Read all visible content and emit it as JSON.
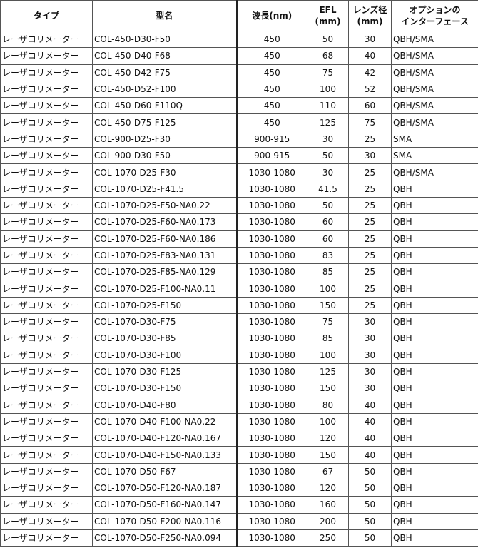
{
  "headers": [
    "タイプ",
    "型名",
    "波長(nm)",
    "EFL\n(mm)",
    "レンズ径\n(mm)",
    "オプションの\nインターフェース"
  ],
  "rows": [
    [
      "レーザコリメーター",
      "COL-450-D30-F50",
      "450",
      "50",
      "30",
      "QBH/SMA"
    ],
    [
      "レーザコリメーター",
      "COL-450-D40-F68",
      "450",
      "68",
      "40",
      "QBH/SMA"
    ],
    [
      "レーザコリメーター",
      "COL-450-D42-F75",
      "450",
      "75",
      "42",
      "QBH/SMA"
    ],
    [
      "レーザコリメーター",
      "COL-450-D52-F100",
      "450",
      "100",
      "52",
      "QBH/SMA"
    ],
    [
      "レーザコリメーター",
      "COL-450-D60-F110Q",
      "450",
      "110",
      "60",
      "QBH/SMA"
    ],
    [
      "レーザコリメーター",
      "COL-450-D75-F125",
      "450",
      "125",
      "75",
      "QBH/SMA"
    ],
    [
      "レーザコリメーター",
      "COL-900-D25-F30",
      "900-915",
      "30",
      "25",
      "SMA"
    ],
    [
      "レーザコリメーター",
      "COL-900-D30-F50",
      "900-915",
      "50",
      "30",
      "SMA"
    ],
    [
      "レーザコリメーター",
      "COL-1070-D25-F30",
      "1030-1080",
      "30",
      "25",
      "QBH/SMA"
    ],
    [
      "レーザコリメーター",
      "COL-1070-D25-F41.5",
      "1030-1080",
      "41.5",
      "25",
      "QBH"
    ],
    [
      "レーザコリメーター",
      "COL-1070-D25-F50-NA0.22",
      "1030-1080",
      "50",
      "25",
      "QBH"
    ],
    [
      "レーザコリメーター",
      "COL-1070-D25-F60-NA0.173",
      "1030-1080",
      "60",
      "25",
      "QBH"
    ],
    [
      "レーザコリメーター",
      "COL-1070-D25-F60-NA0.186",
      "1030-1080",
      "60",
      "25",
      "QBH"
    ],
    [
      "レーザコリメーター",
      "COL-1070-D25-F83-NA0.131",
      "1030-1080",
      "83",
      "25",
      "QBH"
    ],
    [
      "レーザコリメーター",
      "COL-1070-D25-F85-NA0.129",
      "1030-1080",
      "85",
      "25",
      "QBH"
    ],
    [
      "レーザコリメーター",
      "COL-1070-D25-F100-NA0.11",
      "1030-1080",
      "100",
      "25",
      "QBH"
    ],
    [
      "レーザコリメーター",
      "COL-1070-D25-F150",
      "1030-1080",
      "150",
      "25",
      "QBH"
    ],
    [
      "レーザコリメーター",
      "COL-1070-D30-F75",
      "1030-1080",
      "75",
      "30",
      "QBH"
    ],
    [
      "レーザコリメーター",
      "COL-1070-D30-F85",
      "1030-1080",
      "85",
      "30",
      "QBH"
    ],
    [
      "レーザコリメーター",
      "COL-1070-D30-F100",
      "1030-1080",
      "100",
      "30",
      "QBH"
    ],
    [
      "レーザコリメーター",
      "COL-1070-D30-F125",
      "1030-1080",
      "125",
      "30",
      "QBH"
    ],
    [
      "レーザコリメーター",
      "COL-1070-D30-F150",
      "1030-1080",
      "150",
      "30",
      "QBH"
    ],
    [
      "レーザコリメーター",
      "COL-1070-D40-F80",
      "1030-1080",
      "80",
      "40",
      "QBH"
    ],
    [
      "レーザコリメーター",
      "COL-1070-D40-F100-NA0.22",
      "1030-1080",
      "100",
      "40",
      "QBH"
    ],
    [
      "レーザコリメーター",
      "COL-1070-D40-F120-NA0.167",
      "1030-1080",
      "120",
      "40",
      "QBH"
    ],
    [
      "レーザコリメーター",
      "COL-1070-D40-F150-NA0.133",
      "1030-1080",
      "150",
      "40",
      "QBH"
    ],
    [
      "レーザコリメーター",
      "COL-1070-D50-F67",
      "1030-1080",
      "67",
      "50",
      "QBH"
    ],
    [
      "レーザコリメーター",
      "COL-1070-D50-F120-NA0.187",
      "1030-1080",
      "120",
      "50",
      "QBH"
    ],
    [
      "レーザコリメーター",
      "COL-1070-D50-F160-NA0.147",
      "1030-1080",
      "160",
      "50",
      "QBH"
    ],
    [
      "レーザコリメーター",
      "COL-1070-D50-F200-NA0.116",
      "1030-1080",
      "200",
      "50",
      "QBH"
    ],
    [
      "レーザコリメーター",
      "COL-1070-D50-F250-NA0.094",
      "1030-1080",
      "250",
      "50",
      "QBH"
    ]
  ]
}
